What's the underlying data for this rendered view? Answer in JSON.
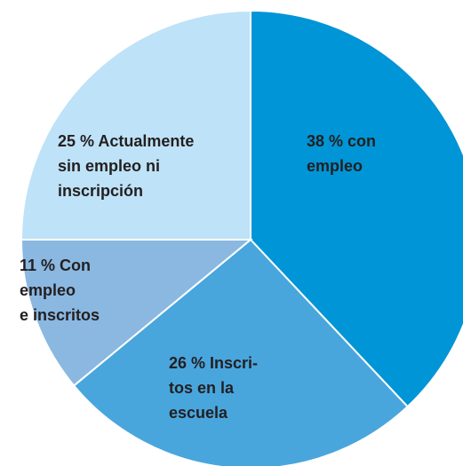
{
  "chart_data": {
    "type": "pie",
    "values": [
      38,
      26,
      11,
      25
    ],
    "labels": [
      [
        "38 % con",
        "empleo"
      ],
      [
        "26 % Inscri-",
        "tos en la",
        "escuela"
      ],
      [
        "11 % Con",
        "empleo",
        "e inscritos"
      ],
      [
        "25 % Actualmente",
        "sin empleo ni",
        "inscripción"
      ]
    ],
    "colors": [
      "#0095d6",
      "#48a6dd",
      "#8ab8e1",
      "#bee2f7"
    ]
  }
}
